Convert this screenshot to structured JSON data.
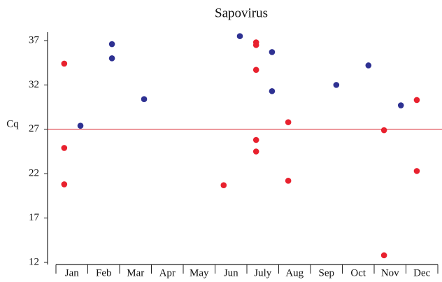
{
  "chart_data": {
    "type": "scatter",
    "title": "Sapovirus",
    "y_label": "Cq",
    "categories": [
      "Jan",
      "Feb",
      "Mar",
      "Apr",
      "May",
      "Jun",
      "July",
      "Aug",
      "Sep",
      "Oct",
      "Nov",
      "Dec"
    ],
    "xlim": [
      0,
      12
    ],
    "xticks": [
      0,
      1,
      2,
      3,
      4,
      5,
      6,
      7,
      8,
      9,
      10,
      11,
      12
    ],
    "ylim": [
      12,
      38
    ],
    "yticks": [
      12,
      17,
      22,
      27,
      32,
      37
    ],
    "reference_line": {
      "value": 27,
      "color": "#d9232d"
    },
    "series": [
      {
        "color": "#e8212e",
        "x": [
          0.26,
          0.26,
          0.26,
          5.27,
          6.29,
          6.29,
          6.29,
          6.29,
          6.29,
          7.3,
          7.3,
          10.31,
          10.31,
          11.34,
          11.34
        ],
        "values": [
          34.4,
          24.9,
          20.8,
          20.7,
          36.8,
          36.5,
          33.7,
          25.8,
          24.5,
          27.8,
          21.2,
          26.9,
          12.8,
          30.3,
          22.3
        ]
      },
      {
        "color": "#2e3192",
        "x": [
          0.77,
          1.76,
          1.76,
          2.77,
          5.78,
          6.79,
          6.79,
          8.81,
          9.82,
          10.84
        ],
        "values": [
          27.4,
          36.6,
          35.0,
          30.4,
          37.5,
          35.7,
          31.3,
          32.0,
          34.2,
          29.7
        ]
      }
    ]
  }
}
